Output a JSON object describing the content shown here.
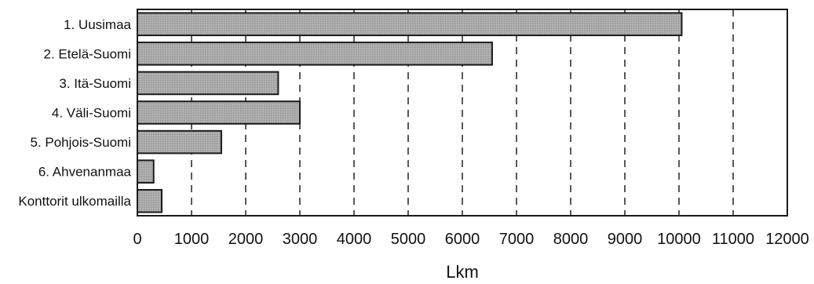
{
  "chart_data": {
    "type": "bar",
    "orientation": "horizontal",
    "categories": [
      "1. Uusimaa",
      "2. Etelä-Suomi",
      "3. Itä-Suomi",
      "4. Väli-Suomi",
      "5. Pohjois-Suomi",
      "6. Ahvenanmaa",
      "Konttorit ulkomailla"
    ],
    "values": [
      10050,
      6550,
      2600,
      3000,
      1550,
      300,
      450
    ],
    "xlabel": "Lkm",
    "ylabel": "",
    "xlim": [
      0,
      12000
    ],
    "xticks": [
      0,
      1000,
      2000,
      3000,
      4000,
      5000,
      6000,
      7000,
      8000,
      9000,
      10000,
      11000,
      12000
    ],
    "grid": "vertical dashed",
    "legend": "none",
    "colors": {
      "bar_fill": "#a9a9a9",
      "bar_stroke": "#1a1a1a",
      "grid": "#222222"
    }
  }
}
